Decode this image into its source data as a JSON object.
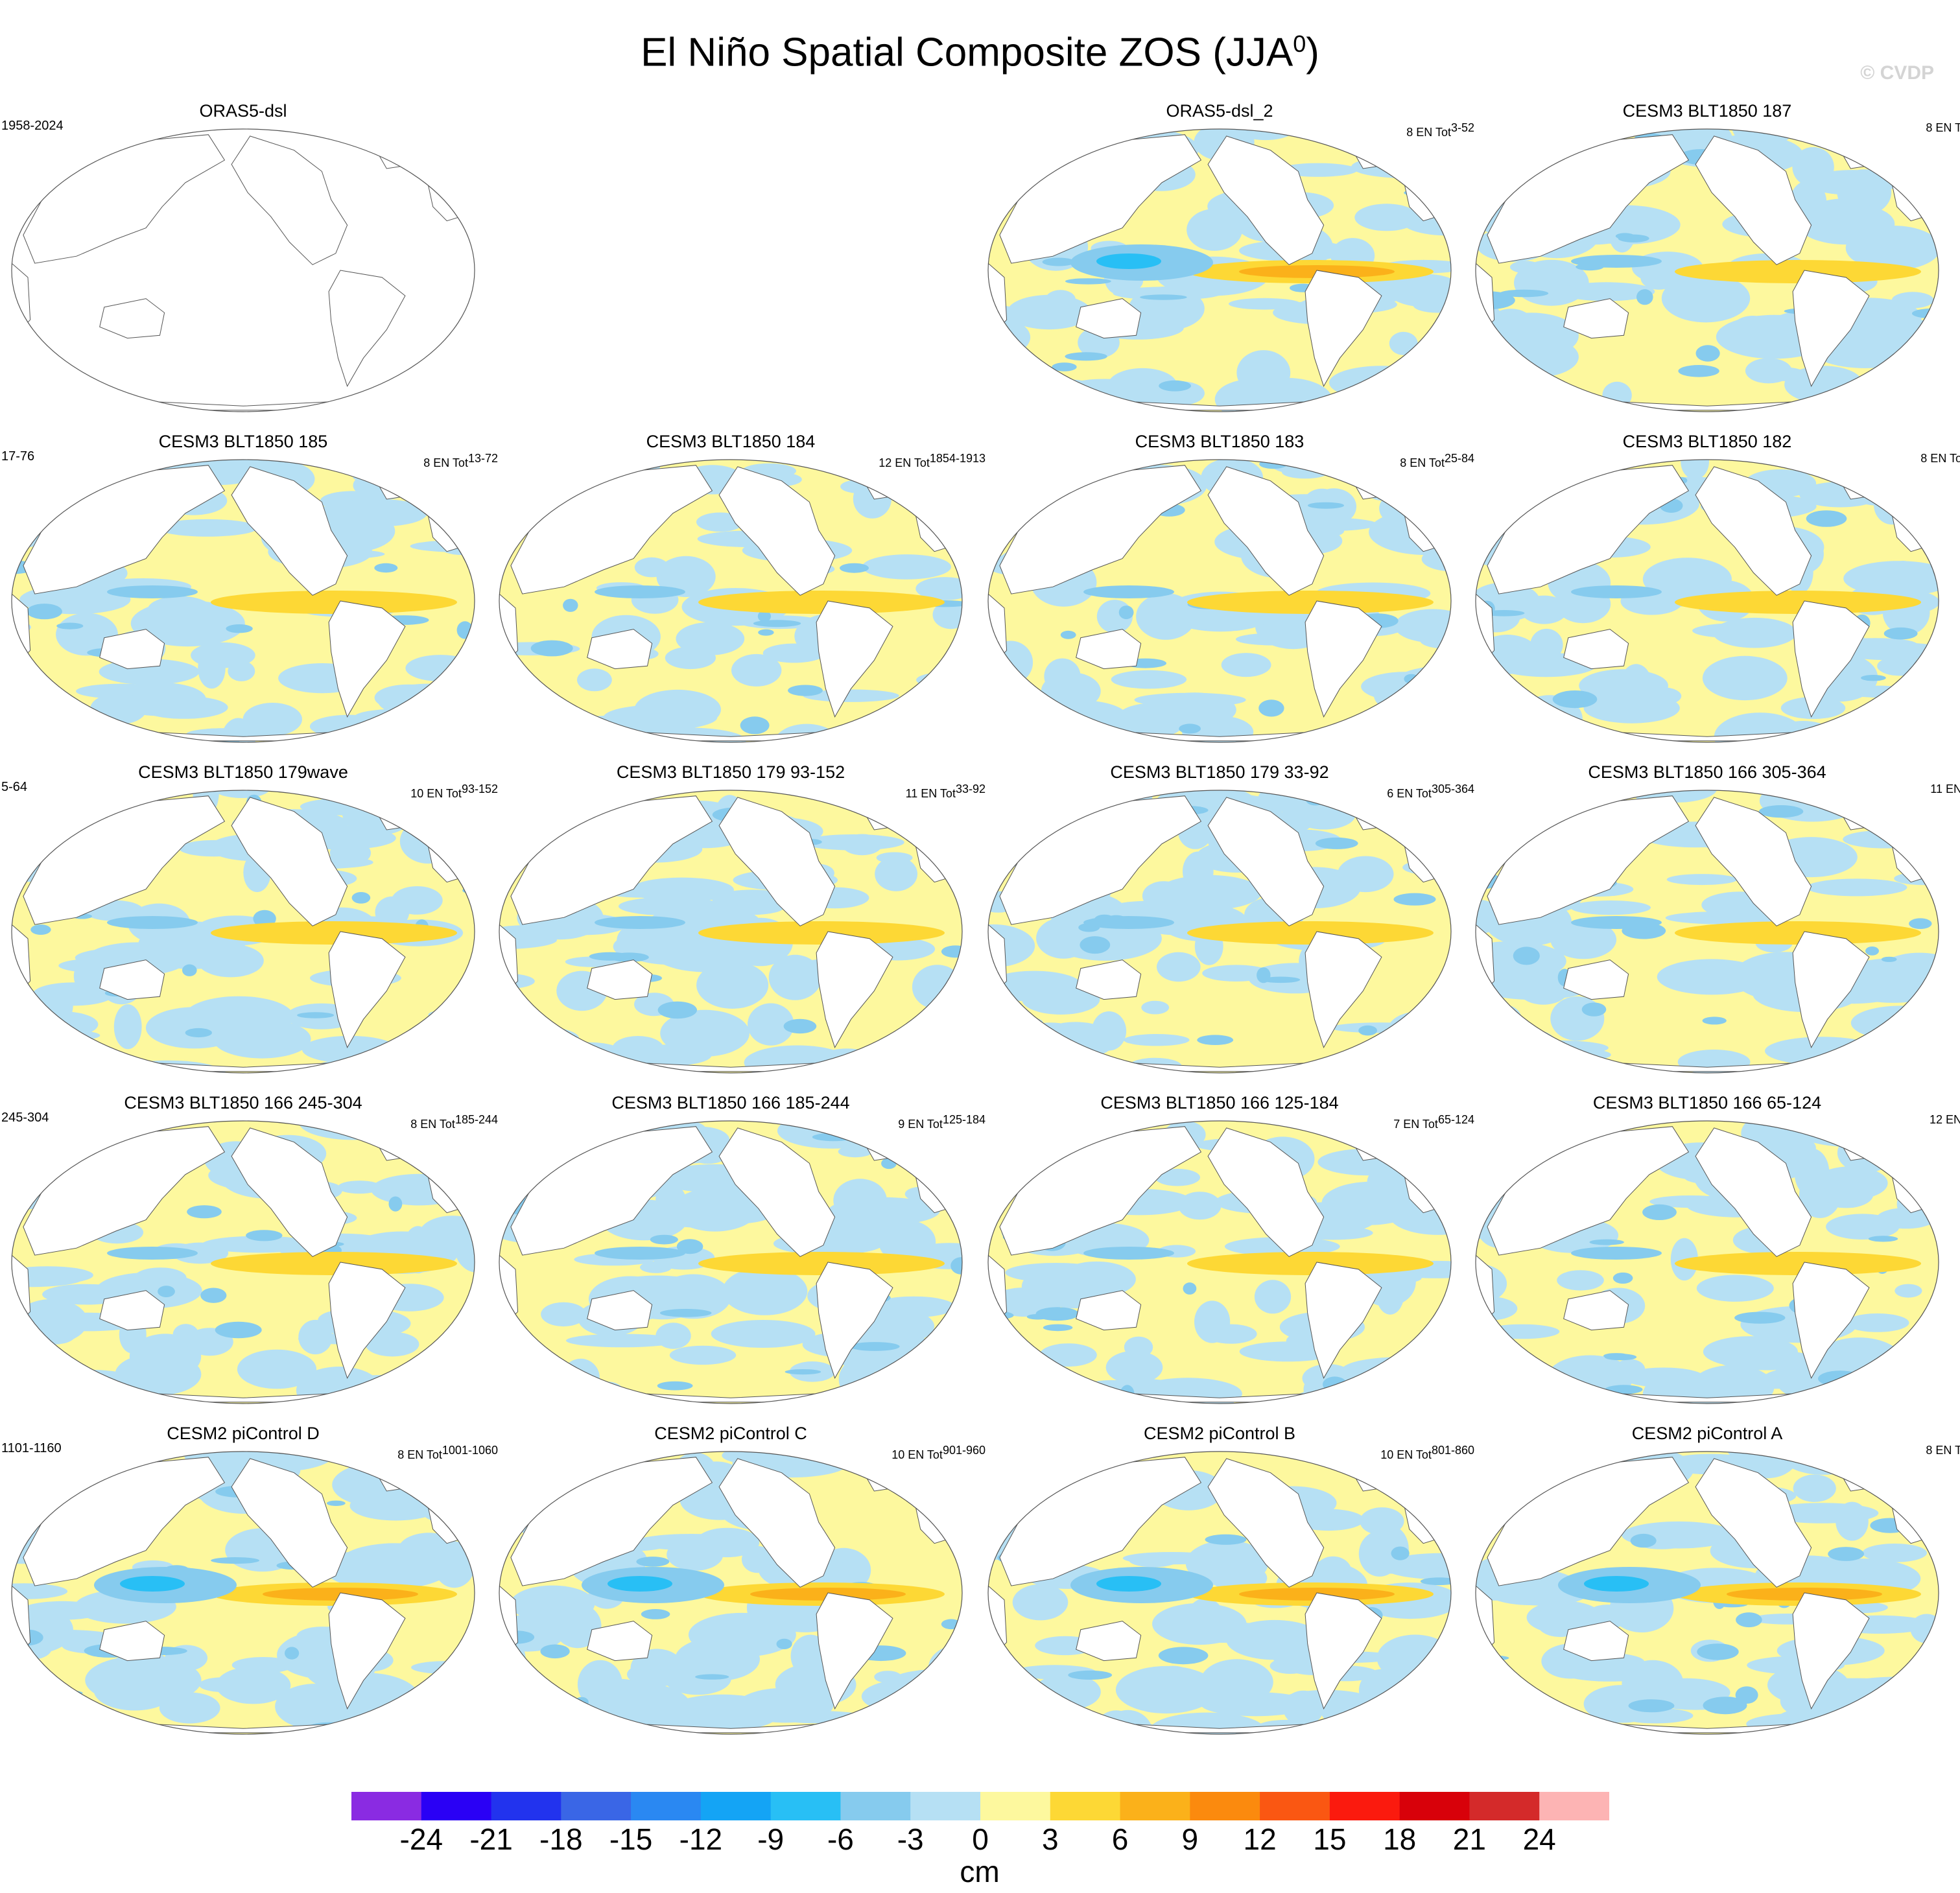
{
  "title": {
    "main": "El Niño Spatial Composite ZOS (JJA",
    "sup": "0",
    "close": ")"
  },
  "watermark": "© CVDP",
  "panels": [
    {
      "name": "ORAS5-dsl",
      "left_meta": "1958-2024",
      "right_meta": "",
      "right_sup": "",
      "empty": true
    },
    null,
    {
      "name": "ORAS5-dsl_2",
      "left_meta": "",
      "right_meta": "8 EN Tot",
      "right_sup": "3-52"
    },
    {
      "name": "CESM3 BLT1850 187",
      "left_meta": "",
      "right_meta": "8 EN T",
      "right_sup": ""
    },
    {
      "name": "CESM3 BLT1850 185",
      "left_meta": "17-76",
      "right_meta": "8 EN Tot",
      "right_sup": "13-72"
    },
    {
      "name": "CESM3 BLT1850 184",
      "left_meta": "",
      "right_meta": "12 EN Tot",
      "right_sup": "1854-1913"
    },
    {
      "name": "CESM3 BLT1850 183",
      "left_meta": "",
      "right_meta": "8 EN Tot",
      "right_sup": "25-84"
    },
    {
      "name": "CESM3 BLT1850 182",
      "left_meta": "",
      "right_meta": "8 EN To",
      "right_sup": ""
    },
    {
      "name": "CESM3 BLT1850 179wave",
      "left_meta": "5-64",
      "right_meta": "10 EN Tot",
      "right_sup": "93-152"
    },
    {
      "name": "CESM3 BLT1850 179 93-152",
      "left_meta": "",
      "right_meta": "11 EN Tot",
      "right_sup": "33-92"
    },
    {
      "name": "CESM3 BLT1850 179 33-92",
      "left_meta": "",
      "right_meta": "6 EN Tot",
      "right_sup": "305-364"
    },
    {
      "name": "CESM3 BLT1850 166 305-364",
      "left_meta": "",
      "right_meta": "11 EN",
      "right_sup": ""
    },
    {
      "name": "CESM3 BLT1850 166 245-304",
      "left_meta": "245-304",
      "right_meta": "8 EN Tot",
      "right_sup": "185-244"
    },
    {
      "name": "CESM3 BLT1850 166 185-244",
      "left_meta": "",
      "right_meta": "9 EN Tot",
      "right_sup": "125-184"
    },
    {
      "name": "CESM3 BLT1850 166 125-184",
      "left_meta": "",
      "right_meta": "7 EN Tot",
      "right_sup": "65-124"
    },
    {
      "name": "CESM3 BLT1850 166 65-124",
      "left_meta": "",
      "right_meta": "12 EN",
      "right_sup": ""
    },
    {
      "name": "CESM2 piControl D",
      "left_meta": "1101-1160",
      "right_meta": "8 EN Tot",
      "right_sup": "1001-1060"
    },
    {
      "name": "CESM2 piControl C",
      "left_meta": "",
      "right_meta": "10 EN Tot",
      "right_sup": "901-960"
    },
    {
      "name": "CESM2 piControl B",
      "left_meta": "",
      "right_meta": "10 EN Tot",
      "right_sup": "801-860"
    },
    {
      "name": "CESM2 piControl A",
      "left_meta": "",
      "right_meta": "8 EN T",
      "right_sup": ""
    }
  ],
  "colorbar": {
    "unit": "cm",
    "labels": [
      "-24",
      "-21",
      "-18",
      "-15",
      "-12",
      "-9",
      "-6",
      "-3",
      "0",
      "3",
      "6",
      "9",
      "12",
      "15",
      "18",
      "21",
      "24"
    ],
    "colors": [
      "#8a2be2",
      "#2a00f5",
      "#2233ee",
      "#3a66e6",
      "#2a88f2",
      "#14a4f5",
      "#28bff5",
      "#86cbee",
      "#b6e0f4",
      "#fdf89e",
      "#fdd835",
      "#fbb11a",
      "#fb8a0e",
      "#fa5712",
      "#fb1a0e",
      "#d8010a",
      "#d42a2a",
      "#fdb4b4"
    ]
  }
}
